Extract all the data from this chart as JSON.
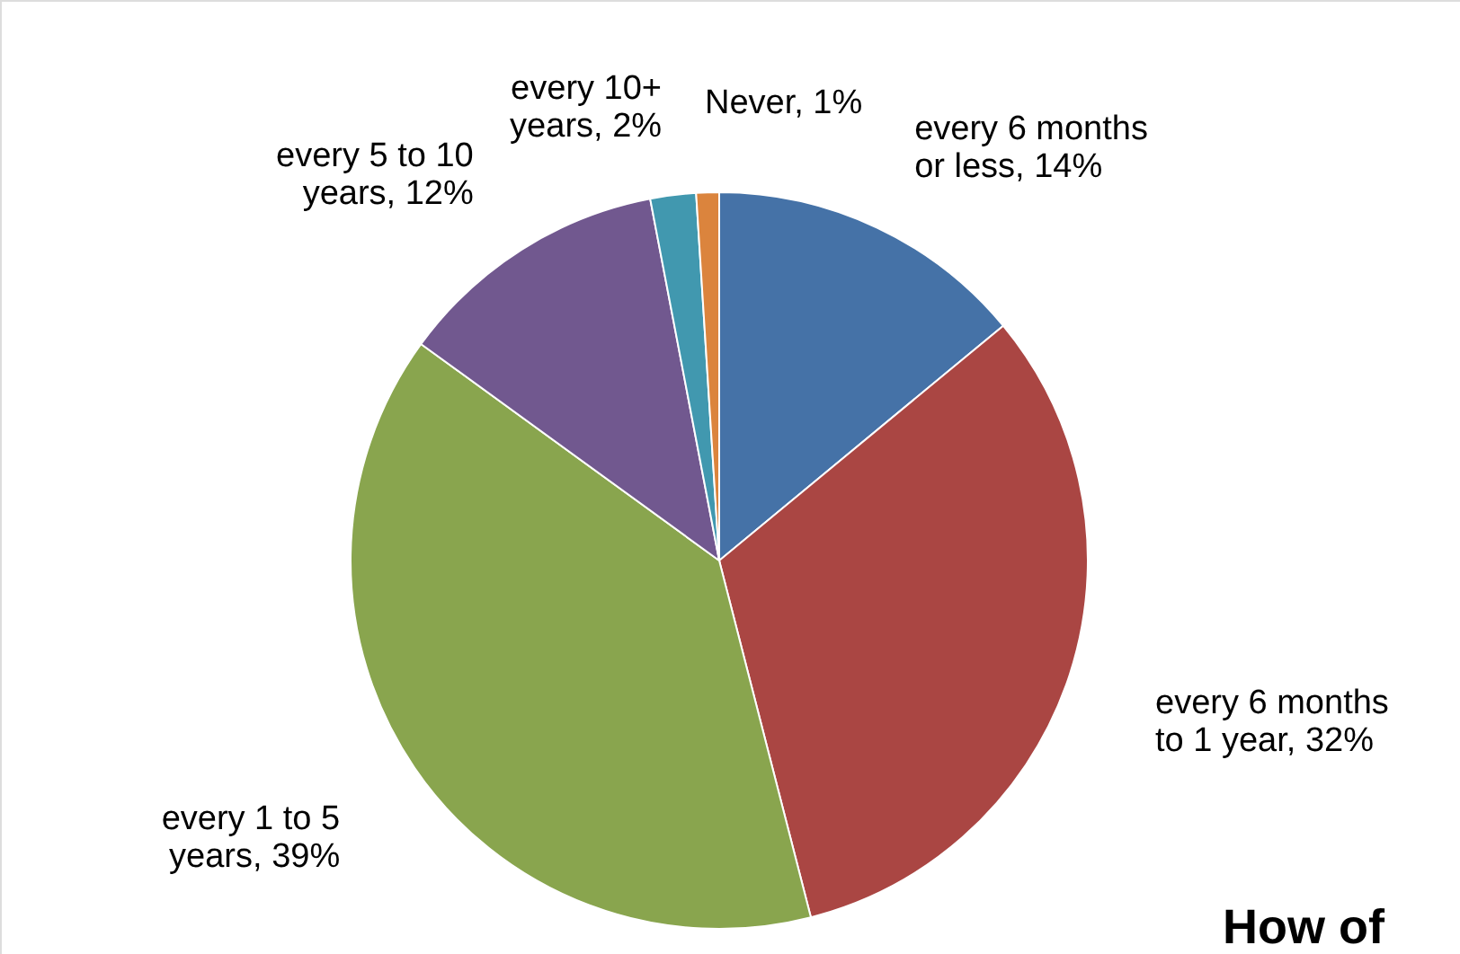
{
  "chart_data": {
    "type": "pie",
    "title": "How of",
    "categories": [
      "every 6 months or less",
      "every 6 months to 1 year",
      "every 1 to 5 years",
      "every 5 to 10 years",
      "every 10+ years",
      "Never"
    ],
    "values": [
      14,
      32,
      39,
      12,
      2,
      1
    ],
    "colors": [
      "#4572a7",
      "#aa4643",
      "#89a54e",
      "#71588f",
      "#4198af",
      "#db843d"
    ],
    "value_labels": [
      "14%",
      "32%",
      "39%",
      "12%",
      "2%",
      "1%"
    ]
  }
}
